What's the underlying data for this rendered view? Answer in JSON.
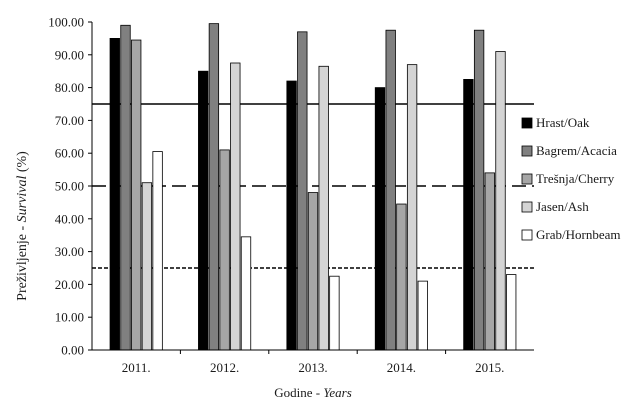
{
  "chart_data": {
    "type": "bar",
    "categories": [
      "2011.",
      "2012.",
      "2013.",
      "2014.",
      "2015."
    ],
    "series": [
      {
        "name": "Hrast/Oak",
        "values": [
          95.0,
          85.0,
          82.0,
          80.0,
          82.5
        ],
        "color": "#000000"
      },
      {
        "name": "Bagrem/Acacia",
        "values": [
          99.0,
          99.5,
          97.0,
          97.5,
          97.5
        ],
        "color": "#808080"
      },
      {
        "name": "Trešnja/Cherry",
        "values": [
          94.5,
          61.0,
          48.0,
          44.5,
          54.0
        ],
        "color": "#a6a6a6"
      },
      {
        "name": "Jasen/Ash",
        "values": [
          51.0,
          87.5,
          86.5,
          87.0,
          91.0
        ],
        "color": "#d4d4d4"
      },
      {
        "name": "Grab/Hornbeam",
        "values": [
          60.5,
          34.5,
          22.5,
          21.0,
          23.0
        ],
        "color": "#ffffff"
      }
    ],
    "reference_lines": [
      {
        "value": 75,
        "style": "solid"
      },
      {
        "value": 50,
        "style": "long-dash"
      },
      {
        "value": 25,
        "style": "short-dash"
      }
    ],
    "ylim": [
      0,
      100
    ],
    "yticks": [
      "0.00",
      "10.00",
      "20.00",
      "30.00",
      "40.00",
      "50.00",
      "60.00",
      "70.00",
      "80.00",
      "90.00",
      "100.00"
    ],
    "ylabel_main": "Preživljenje - ",
    "ylabel_italic": "Survival",
    "ylabel_unit": " (%)",
    "xlabel_main": "Godine - ",
    "xlabel_italic": "Years",
    "legend_position": "right",
    "grid": false
  }
}
